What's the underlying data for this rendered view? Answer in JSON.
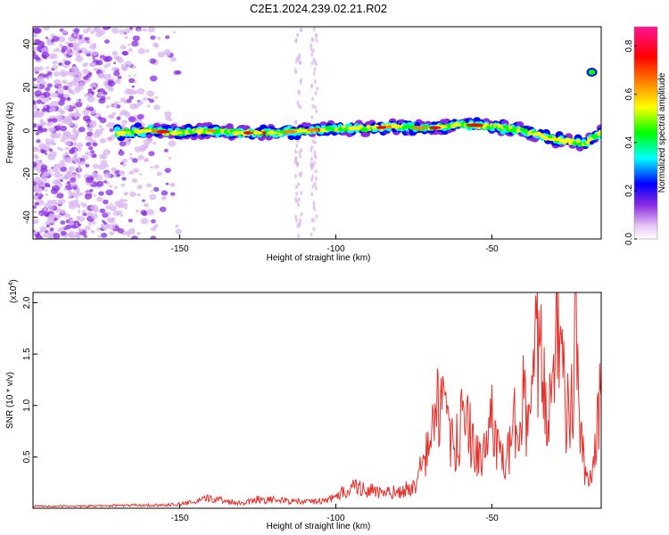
{
  "figure": {
    "title": "C2E1.2024.239.02.21.R02"
  },
  "chart_data": [
    {
      "type": "heatmap",
      "xlabel": "Height of straight line (km)",
      "ylabel": "Frequency (Hz)",
      "xlim": [
        -197,
        -15
      ],
      "ylim": [
        -50,
        48
      ],
      "xticks": [
        -150,
        -100,
        -50
      ],
      "yticks": [
        -40,
        -20,
        0,
        20,
        40
      ],
      "colorbar": {
        "label": "Normalized spectral amplitude",
        "range": [
          0.0,
          0.88
        ],
        "ticks": [
          0.0,
          0.2,
          0.4,
          0.6,
          0.8
        ],
        "colormap": [
          "#ffffff",
          "#e6c8f5",
          "#8a2be2",
          "#0000ff",
          "#00ffff",
          "#00ff00",
          "#ffff00",
          "#ff8000",
          "#ff0000",
          "#ff1493"
        ]
      },
      "ridge": {
        "description_free": true,
        "x": [
          -170,
          -160,
          -150,
          -140,
          -130,
          -120,
          -110,
          -100,
          -90,
          -80,
          -70,
          -60,
          -50,
          -40,
          -30,
          -20,
          -15
        ],
        "y": [
          -1,
          0,
          -1,
          0,
          -1,
          -1,
          0,
          1,
          1,
          2,
          1,
          3,
          2,
          0,
          -4,
          -6,
          0
        ]
      }
    },
    {
      "type": "line",
      "xlabel": "Height of straight line (km)",
      "ylabel": "SNR (10 * v/v)",
      "y_multiplier": "(x10",
      "y_multiplier_exp": "4",
      "xlim": [
        -197,
        -15
      ],
      "ylim": [
        0.0,
        2.1
      ],
      "xticks": [
        -150,
        -100,
        -50
      ],
      "yticks": [
        0.5,
        1.0,
        1.5,
        2.0
      ],
      "series": [
        {
          "color": "#e8302a",
          "x": [
            -197,
            -180,
            -165,
            -155,
            -150,
            -145,
            -140,
            -135,
            -130,
            -125,
            -120,
            -115,
            -110,
            -105,
            -100,
            -95,
            -90,
            -85,
            -80,
            -75,
            -70,
            -68,
            -66,
            -64,
            -62,
            -60,
            -58,
            -56,
            -54,
            -52,
            -50,
            -48,
            -46,
            -44,
            -42,
            -40,
            -38,
            -36,
            -34,
            -32,
            -30,
            -29,
            -28,
            -26,
            -24,
            -23,
            -22,
            -20,
            -18,
            -16,
            -15
          ],
          "y": [
            0.02,
            0.02,
            0.03,
            0.03,
            0.04,
            0.06,
            0.1,
            0.07,
            0.05,
            0.09,
            0.08,
            0.07,
            0.06,
            0.07,
            0.1,
            0.22,
            0.18,
            0.14,
            0.16,
            0.2,
            0.6,
            0.95,
            1.05,
            0.7,
            0.55,
            0.8,
            0.9,
            0.6,
            0.45,
            0.55,
            0.95,
            0.55,
            0.4,
            0.6,
            0.95,
            1.1,
            0.7,
            1.55,
            1.35,
            0.8,
            1.75,
            2.1,
            1.4,
            0.9,
            1.0,
            2.05,
            0.8,
            0.3,
            0.25,
            0.85,
            1.1
          ]
        }
      ]
    }
  ]
}
